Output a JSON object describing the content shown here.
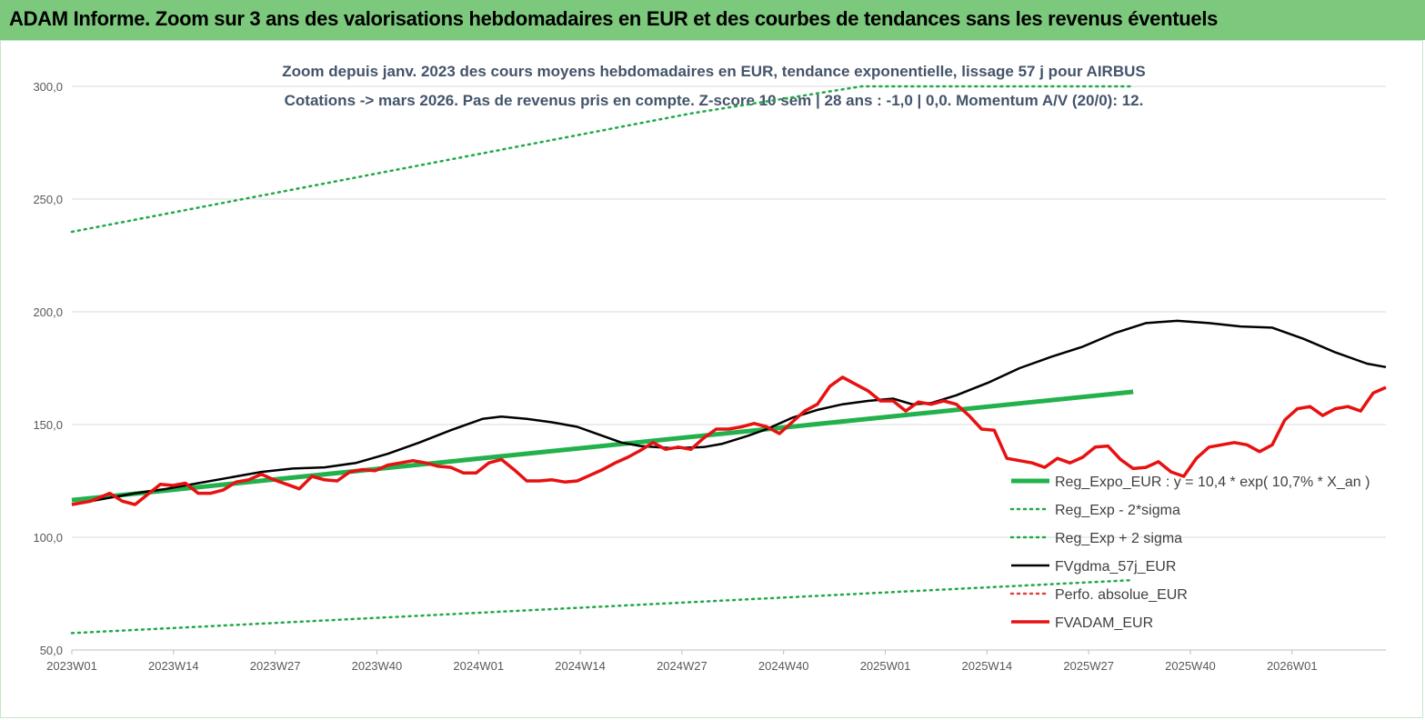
{
  "banner": {
    "title": "ADAM Informe. Zoom sur 3 ans des valorisations hebdomadaires en EUR et des courbes de tendances sans les revenus éventuels"
  },
  "colors": {
    "banner": "#7cc87c",
    "trend": "#22b14c",
    "band": "#22a84a",
    "smooth": "#000000",
    "perf": "#e04040",
    "price": "#e81010",
    "grid": "#d9d9d9"
  },
  "chart_data": {
    "type": "line",
    "title": "Zoom depuis janv. 2023 des cours moyens hebdomadaires en EUR, tendance exponentielle, lissage 57 j pour AIRBUS",
    "subtitle": "Cotations -> mars 2026. Pas de revenus pris en compte. Z-score 10 sem | 28 ans : -1,0 | 0,0. Momentum A/V (20/0): 12.",
    "ylim": [
      50,
      300
    ],
    "yticks": [
      "50,0",
      "100,0",
      "150,0",
      "200,0",
      "250,0",
      "300,0"
    ],
    "ytick_values": [
      50,
      100,
      150,
      200,
      250,
      300
    ],
    "x_tick_labels": [
      "2023W01",
      "2023W14",
      "2023W27",
      "2023W40",
      "2024W01",
      "2024W14",
      "2024W27",
      "2024W40",
      "2025W01",
      "2025W14",
      "2025W27",
      "2025W40",
      "2026W01"
    ],
    "x_tick_index": [
      0,
      13,
      26,
      39,
      52,
      65,
      78,
      91,
      104,
      117,
      130,
      143,
      156
    ],
    "n_weeks": 169,
    "grid": true,
    "legend_position": "right",
    "series": [
      {
        "name": "Reg_Expo_EUR : y = 10,4 * exp( 10,7% * X_an )",
        "style": "thick-solid",
        "color": "#22b14c",
        "points": [
          [
            0,
            116.5
          ],
          [
            168,
            164.5
          ]
        ]
      },
      {
        "name": "Reg_Exp - 2*sigma",
        "style": "dotted",
        "color": "#22a84a",
        "points": [
          [
            0,
            57.5
          ],
          [
            168,
            81
          ]
        ]
      },
      {
        "name": "Reg_Exp + 2 sigma",
        "style": "dotted",
        "color": "#22a84a",
        "points": [
          [
            0,
            235.5
          ],
          [
            98,
            288
          ],
          [
            125,
            300
          ],
          [
            168,
            300
          ]
        ]
      },
      {
        "name": "FVgdma_57j_EUR",
        "style": "solid",
        "color": "#000000",
        "points": [
          [
            0,
            114.5
          ],
          [
            5,
            117
          ],
          [
            10,
            119.5
          ],
          [
            15,
            121.5
          ],
          [
            20,
            124
          ],
          [
            25,
            126.5
          ],
          [
            30,
            129
          ],
          [
            35,
            130.5
          ],
          [
            40,
            131
          ],
          [
            45,
            133
          ],
          [
            50,
            137
          ],
          [
            55,
            142
          ],
          [
            60,
            147.5
          ],
          [
            65,
            152.5
          ],
          [
            68,
            153.5
          ],
          [
            72,
            152.5
          ],
          [
            76,
            151
          ],
          [
            80,
            149
          ],
          [
            83,
            146
          ],
          [
            87,
            142
          ],
          [
            90,
            140.5
          ],
          [
            95,
            139.5
          ],
          [
            100,
            140
          ],
          [
            103,
            141.5
          ],
          [
            107,
            145
          ],
          [
            110,
            148
          ],
          [
            114,
            153
          ],
          [
            118,
            156.5
          ],
          [
            122,
            159
          ],
          [
            126,
            160.5
          ],
          [
            130,
            161.5
          ],
          [
            133,
            159
          ],
          [
            136,
            159.5
          ],
          [
            140,
            163
          ],
          [
            145,
            168.5
          ],
          [
            150,
            175
          ],
          [
            155,
            180
          ],
          [
            160,
            184.5
          ],
          [
            165,
            190.5
          ],
          [
            170,
            195
          ],
          [
            175,
            196
          ],
          [
            180,
            195
          ],
          [
            185,
            193.5
          ],
          [
            190,
            193
          ],
          [
            195,
            188
          ],
          [
            200,
            182
          ],
          [
            205,
            177
          ],
          [
            208,
            175.5
          ]
        ]
      },
      {
        "name": "Perfo. absolue_EUR",
        "style": "dotted",
        "color": "#e04040",
        "points": []
      },
      {
        "name": "FVADAM_EUR",
        "style": "thick-solid",
        "color": "#e81010",
        "points": [
          [
            0,
            114.5
          ],
          [
            3,
            116
          ],
          [
            6,
            119.5
          ],
          [
            8,
            116
          ],
          [
            10,
            114.5
          ],
          [
            12,
            119
          ],
          [
            14,
            123.5
          ],
          [
            16,
            123
          ],
          [
            18,
            124
          ],
          [
            20,
            119.5
          ],
          [
            22,
            119.5
          ],
          [
            24,
            121
          ],
          [
            26,
            124.5
          ],
          [
            28,
            125.5
          ],
          [
            30,
            128
          ],
          [
            32,
            125.5
          ],
          [
            34,
            123.5
          ],
          [
            36,
            121.5
          ],
          [
            38,
            127
          ],
          [
            40,
            125.5
          ],
          [
            42,
            125
          ],
          [
            44,
            129
          ],
          [
            46,
            130
          ],
          [
            48,
            129.5
          ],
          [
            50,
            132
          ],
          [
            52,
            133
          ],
          [
            54,
            134
          ],
          [
            56,
            133
          ],
          [
            58,
            131.5
          ],
          [
            60,
            131
          ],
          [
            62,
            128.5
          ],
          [
            64,
            128.5
          ],
          [
            66,
            133
          ],
          [
            68,
            134.5
          ],
          [
            70,
            130
          ],
          [
            72,
            125
          ],
          [
            74,
            125
          ],
          [
            76,
            125.5
          ],
          [
            78,
            124.5
          ],
          [
            80,
            125
          ],
          [
            82,
            127.5
          ],
          [
            84,
            130
          ],
          [
            86,
            133
          ],
          [
            88,
            135.5
          ],
          [
            90,
            138.5
          ],
          [
            92,
            142
          ],
          [
            94,
            139
          ],
          [
            96,
            140
          ],
          [
            98,
            139
          ],
          [
            100,
            144
          ],
          [
            102,
            148
          ],
          [
            104,
            148
          ],
          [
            106,
            149
          ],
          [
            108,
            150.5
          ],
          [
            110,
            149
          ],
          [
            112,
            146
          ],
          [
            114,
            151
          ],
          [
            116,
            156
          ],
          [
            118,
            159
          ],
          [
            120,
            167
          ],
          [
            122,
            171
          ],
          [
            124,
            168
          ],
          [
            126,
            165
          ],
          [
            128,
            160.5
          ],
          [
            130,
            160.5
          ],
          [
            132,
            156
          ],
          [
            134,
            160
          ],
          [
            136,
            159
          ],
          [
            138,
            160.5
          ],
          [
            140,
            159
          ],
          [
            142,
            154
          ],
          [
            144,
            148
          ],
          [
            146,
            147.5
          ],
          [
            148,
            135
          ],
          [
            150,
            134
          ],
          [
            152,
            133
          ],
          [
            154,
            131
          ],
          [
            156,
            135
          ],
          [
            158,
            133
          ],
          [
            160,
            135.5
          ],
          [
            162,
            140
          ],
          [
            164,
            140.5
          ],
          [
            166,
            134.5
          ],
          [
            168,
            130.5
          ],
          [
            170,
            131
          ],
          [
            172,
            133.5
          ],
          [
            174,
            129
          ],
          [
            176,
            127
          ],
          [
            178,
            135
          ],
          [
            180,
            140
          ],
          [
            182,
            141
          ],
          [
            184,
            142
          ],
          [
            186,
            141
          ],
          [
            188,
            138
          ],
          [
            190,
            141
          ],
          [
            192,
            152
          ],
          [
            194,
            157
          ],
          [
            196,
            158
          ],
          [
            198,
            154
          ],
          [
            200,
            157
          ],
          [
            202,
            158
          ],
          [
            204,
            156
          ],
          [
            206,
            164
          ],
          [
            208,
            166.5
          ]
        ]
      }
    ]
  },
  "legend": {
    "items": [
      {
        "label": "Reg_Expo_EUR : y = 10,4 * exp( 10,7% * X_an )"
      },
      {
        "label": "Reg_Exp - 2*sigma"
      },
      {
        "label": "Reg_Exp + 2 sigma"
      },
      {
        "label": "FVgdma_57j_EUR"
      },
      {
        "label": "Perfo. absolue_EUR"
      },
      {
        "label": "FVADAM_EUR"
      }
    ]
  }
}
